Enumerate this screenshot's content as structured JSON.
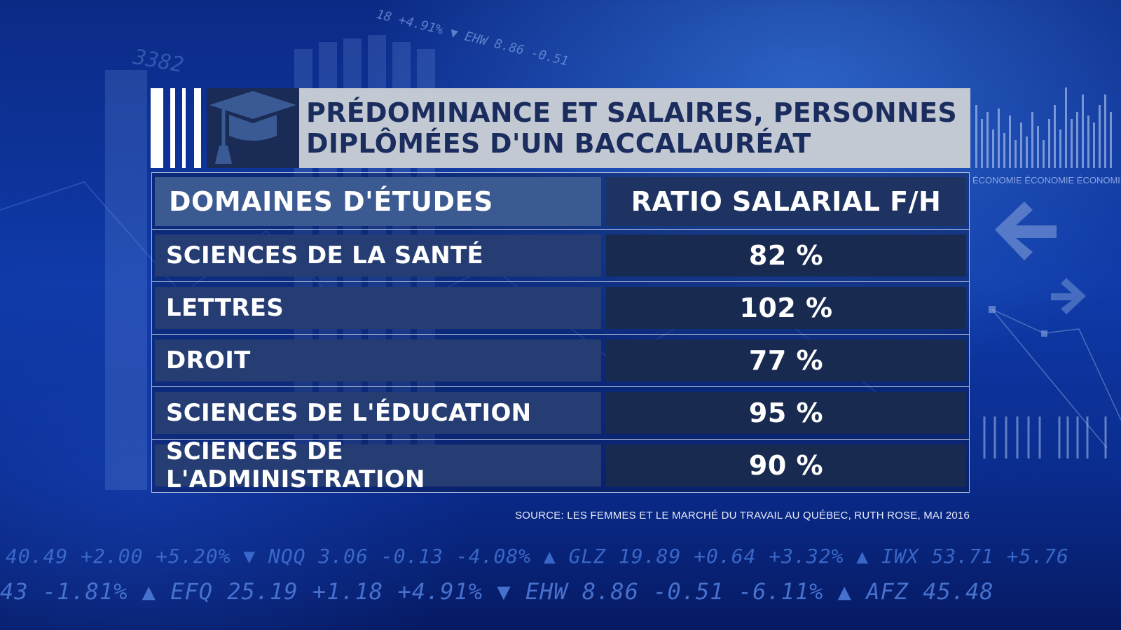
{
  "header": {
    "title_line1": "PRÉDOMINANCE ET SALAIRES, PERSONNES",
    "title_line2": "DIPLÔMÉES D'UN BACCALAURÉAT",
    "icon": "graduation-cap-icon"
  },
  "chart_data": {
    "type": "table",
    "title": "PRÉDOMINANCE ET SALAIRES, PERSONNES DIPLÔMÉES D'UN BACCALAURÉAT",
    "columns": [
      "DOMAINES D'ÉTUDES",
      "RATIO SALARIAL F/H"
    ],
    "rows": [
      {
        "label": "SCIENCES DE LA SANTÉ",
        "value": 82,
        "display": "82 %"
      },
      {
        "label": "LETTRES",
        "value": 102,
        "display": "102 %"
      },
      {
        "label": "DROIT",
        "value": 77,
        "display": "77 %"
      },
      {
        "label": "SCIENCES DE L'ÉDUCATION",
        "value": 95,
        "display": "95 %"
      },
      {
        "label": "SCIENCES DE L'ADMINISTRATION",
        "value": 90,
        "display": "90 %"
      }
    ]
  },
  "source": "SOURCE: LES FEMMES ET LE MARCHÉ DU TRAVAIL AU QUÉBEC, RUTH ROSE, MAI 2016",
  "background": {
    "ticker_line1": "40.49  +2.00  +5.20%  ▼ NQQ  3.06  -0.13  -4.08%  ▲ GLZ  19.89  +0.64  +3.32%  ▲ IWX  53.71  +5.76",
    "ticker_line2": "43  -1.81%  ▲ EFQ  25.19  +1.18  +4.91%  ▼ EHW  8.86  -0.51  -6.11%  ▲ AFZ  45.48",
    "ticker_top": "18  +4.91%  ▼ EHW  8.86  -0.51",
    "number_3382": "3382",
    "economie_strip": "ÉCONOMIE  ÉCONOMIE  ÉCONOMIE"
  },
  "colors": {
    "title_text": "#1b2d5e",
    "title_bg": "#c3c9d3",
    "label_cell": "#253d73",
    "value_cell": "#182a50",
    "header_left": "#3b5a91",
    "header_right": "#1e3362"
  }
}
